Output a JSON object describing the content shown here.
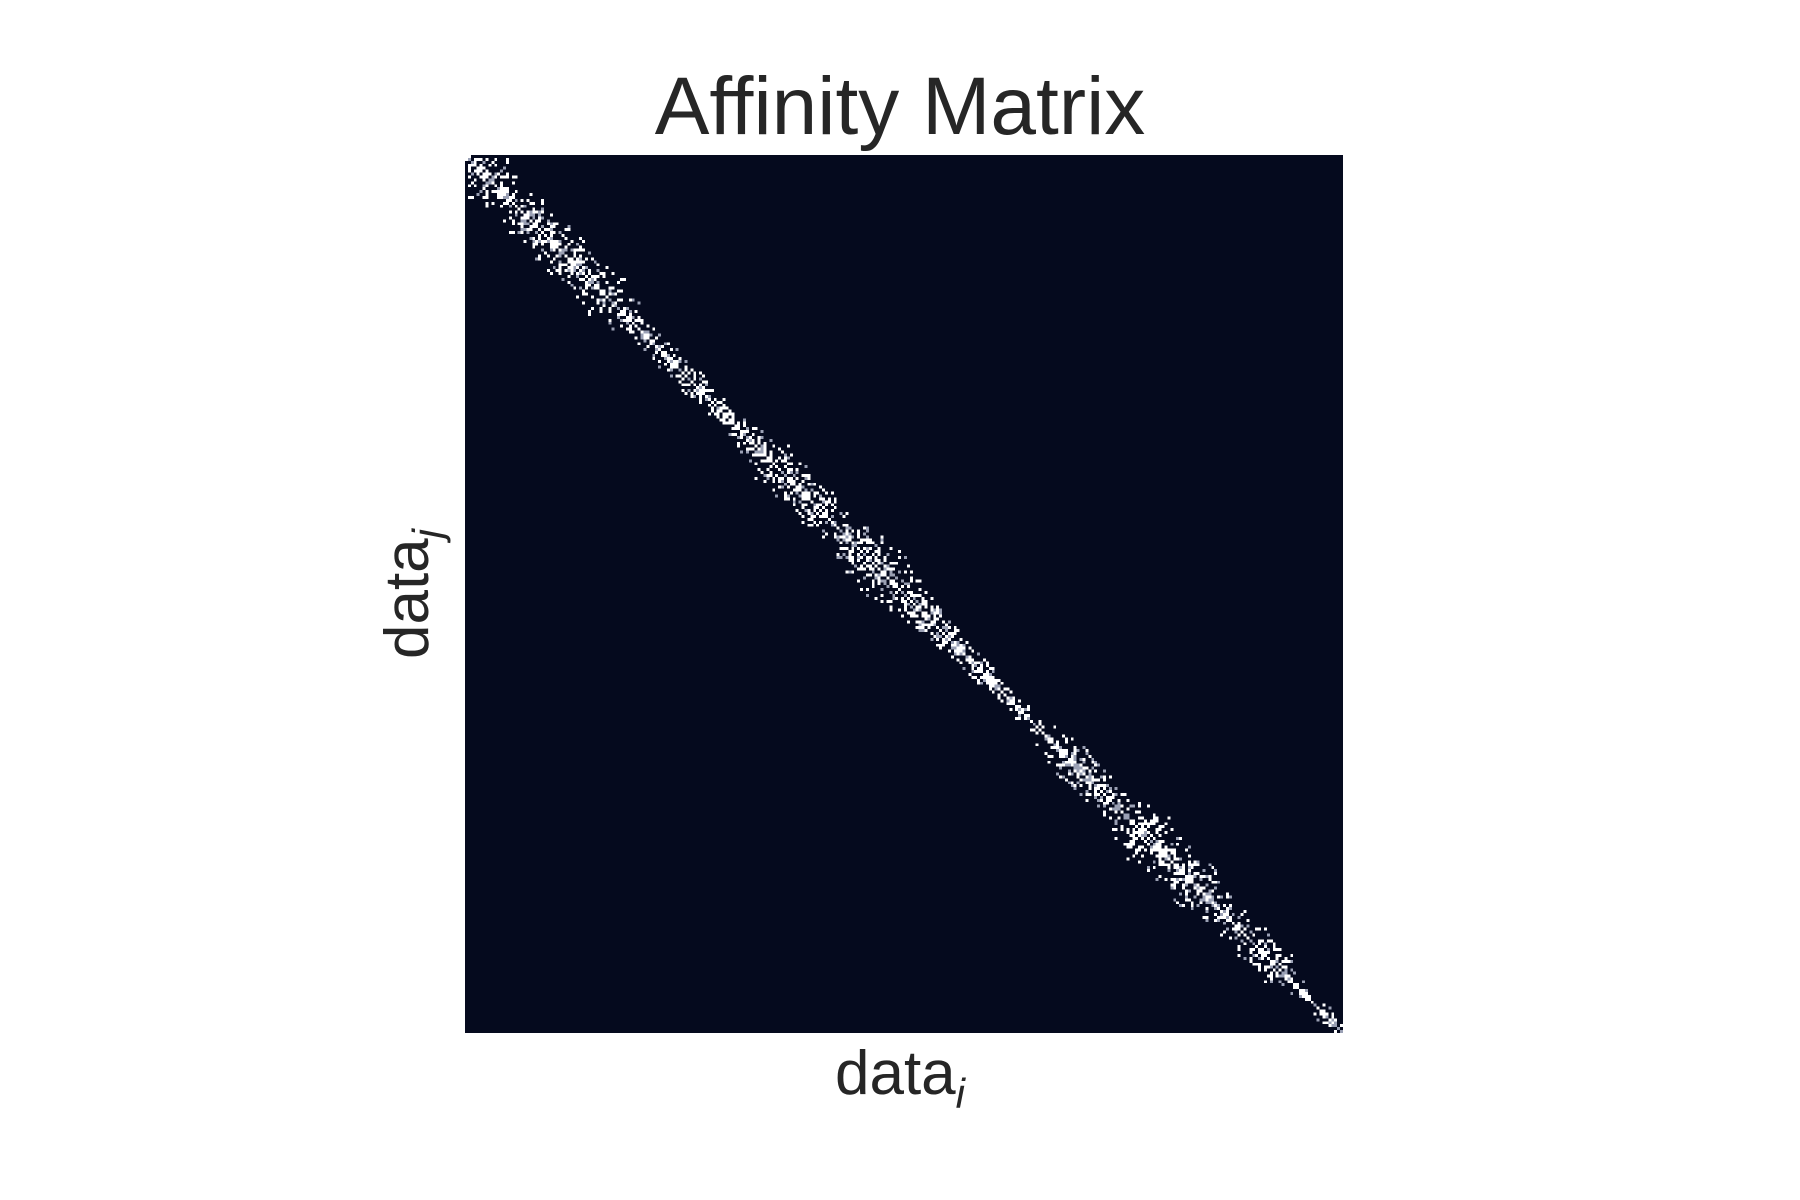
{
  "chart_data": {
    "type": "heatmap",
    "title": "Affinity Matrix",
    "xlabel": {
      "base": "data",
      "subscript": "i"
    },
    "ylabel": {
      "base": "data",
      "subscript": "j"
    },
    "grid": false,
    "legend": "none",
    "matrix_size": 300,
    "band_half_width": 12,
    "band_density": 0.32,
    "xlim": [
      0,
      300
    ],
    "ylim": [
      0,
      300
    ],
    "colors": {
      "background": "#050a1e",
      "connection": "#ffffff",
      "weak_connection": "#9aa0b4"
    }
  }
}
